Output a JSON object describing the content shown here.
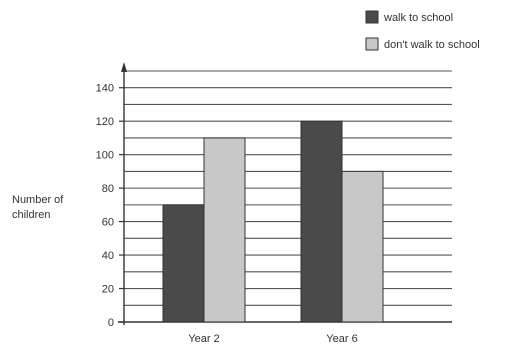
{
  "chart_data": {
    "type": "bar",
    "title": "",
    "xlabel": "",
    "ylabel": [
      "Number of",
      "children"
    ],
    "categories": [
      "Year 2",
      "Year 6"
    ],
    "series": [
      {
        "name": "walk to school",
        "values": [
          70,
          120
        ],
        "color": "#4a4a4a"
      },
      {
        "name": "don't walk to school",
        "values": [
          110,
          90
        ],
        "color": "#c8c8c8"
      }
    ],
    "ylim": [
      0,
      150
    ],
    "yticks": [
      0,
      20,
      40,
      60,
      80,
      100,
      120,
      140
    ],
    "minor_step": 10,
    "grid": true,
    "legend_position": "top-right"
  }
}
